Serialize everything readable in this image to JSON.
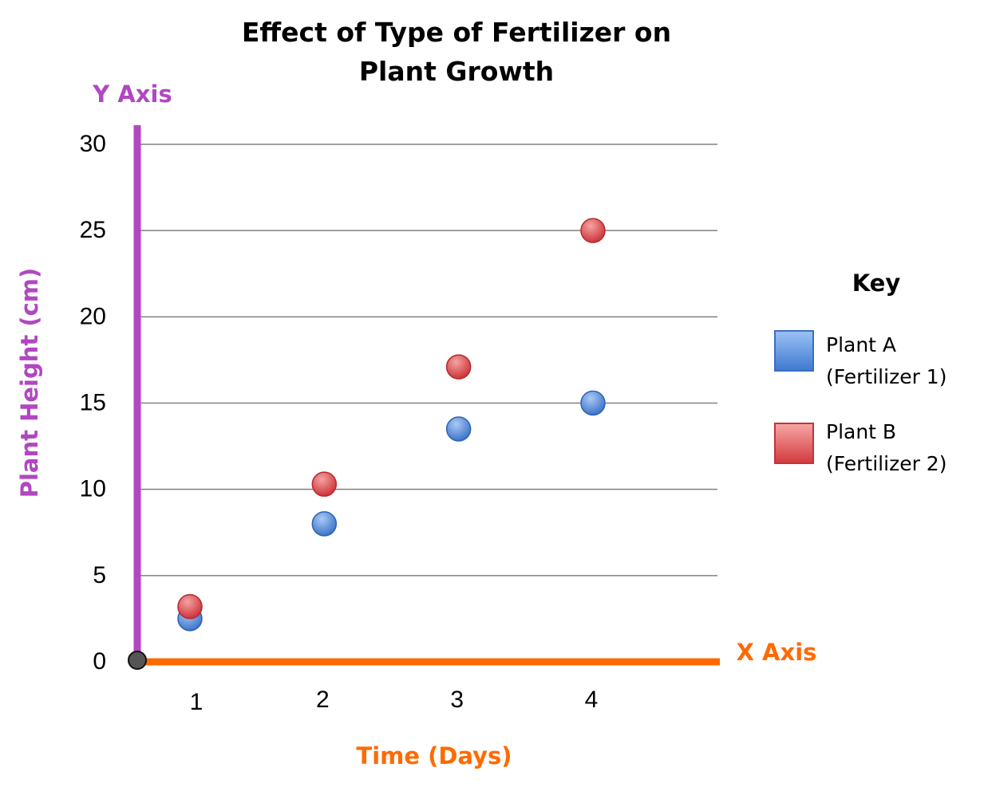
{
  "chart_data": {
    "type": "scatter",
    "title_line1": "Effect of Type of Fertilizer on",
    "title_line2": "Plant Growth",
    "y_axis_name": "Y Axis",
    "x_axis_name": "X Axis",
    "ylabel": "Plant Height (cm)",
    "xlabel": "Time (Days)",
    "ylim": [
      0,
      30
    ],
    "xlim": [
      0.6,
      4.9
    ],
    "yticks": [
      "0",
      "5",
      "10",
      "15",
      "20",
      "25",
      "30"
    ],
    "xticks": [
      "1",
      "2",
      "3",
      "4"
    ],
    "grid": true,
    "legend_position": "right",
    "key_title": "Key",
    "series": [
      {
        "name": "Plant A",
        "name_line2": "(Fertilizer 1)",
        "color": "#4f86d8",
        "x": [
          1,
          2,
          3,
          4
        ],
        "y": [
          2.5,
          8,
          13.5,
          15
        ]
      },
      {
        "name": "Plant B",
        "name_line2": "(Fertilizer 2)",
        "color": "#d9494d",
        "x": [
          1,
          2,
          3,
          4
        ],
        "y": [
          3.2,
          10.3,
          17.1,
          25
        ]
      }
    ],
    "colors": {
      "y_axis": "#b147c1",
      "x_axis": "#ff6a00",
      "grid": "#808080"
    }
  }
}
